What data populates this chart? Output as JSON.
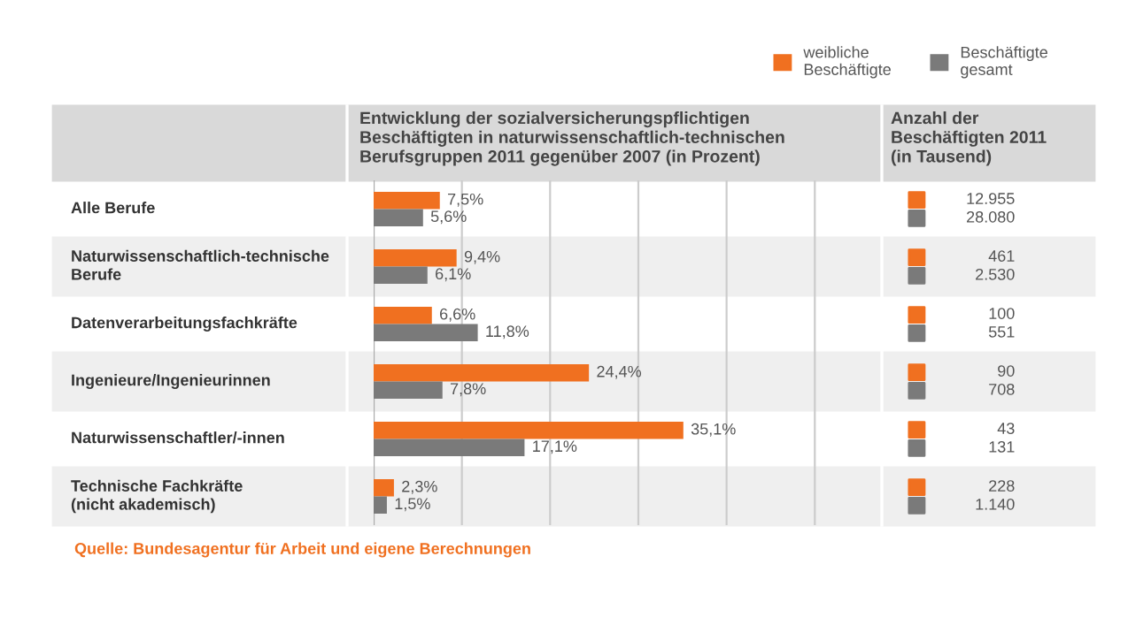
{
  "chart_data": [
    {
      "type": "bar",
      "orientation": "horizontal",
      "title": "Entwicklung der sozialversicherungspflichtigen\nBeschäftigten in naturwissenschaftlich-technischen\nBerufsgruppen 2011 gegenüber 2007 (in Prozent)",
      "categories": [
        "Alle Berufe",
        "Naturwissenschaftlich-technische\nBerufe",
        "Datenverarbeitungsfachkräfte",
        "Ingenieure/Ingenieurinnen",
        "Naturwissenschaftler/-innen",
        "Technische Fachkräfte\n(nicht akademisch)"
      ],
      "series": [
        {
          "name": "weibliche\nBeschäftigte",
          "color": "#f07020",
          "values": [
            7.5,
            9.4,
            6.6,
            24.4,
            35.1,
            2.3
          ],
          "value_labels": [
            "7,5%",
            "9,4%",
            "6,6%",
            "24,4%",
            "35,1%",
            "2,3%"
          ]
        },
        {
          "name": "Beschäftigte\ngesamt",
          "color": "#7a7a7a",
          "values": [
            5.6,
            6.1,
            11.8,
            7.8,
            17.1,
            1.5
          ],
          "value_labels": [
            "5,6%",
            "6,1%",
            "11,8%",
            "7,8%",
            "17,1%",
            "1,5%"
          ]
        }
      ],
      "xlim": [
        0,
        58
      ],
      "xticks": [
        {
          "value": 0,
          "label": null
        },
        {
          "value": 10,
          "label": null
        },
        {
          "value": 20,
          "label": null
        },
        {
          "value": 30,
          "label": null
        },
        {
          "value": 40,
          "label": null
        },
        {
          "value": 50,
          "label": null
        }
      ],
      "grid": "x",
      "legend": "top right",
      "annotations": [
        "Quelle: Bundesagentur für Arbeit und eigene Berechnungen"
      ]
    },
    {
      "type": "other",
      "title": "Anzahl der\nBeschäftigten 2011\n(in Tausend)",
      "colors": [
        "#f07020",
        "#7a7a7a"
      ],
      "annotations": [
        "12.955",
        "28.080",
        "461",
        "2.530",
        "100",
        "551",
        "90",
        "708",
        "43",
        "131",
        "228",
        "1.140"
      ]
    }
  ]
}
